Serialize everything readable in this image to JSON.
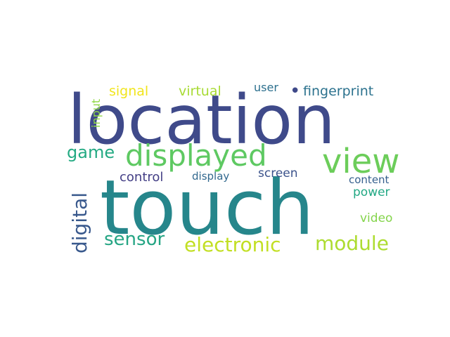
{
  "words": [
    {
      "id": "location",
      "text": "location",
      "color": "#3f4a8a"
    },
    {
      "id": "touch",
      "text": "touch",
      "color": "#26868b"
    },
    {
      "id": "displayed",
      "text": "displayed",
      "color": "#5ec962"
    },
    {
      "id": "view",
      "text": "view",
      "color": "#6ccd5a"
    },
    {
      "id": "electronic",
      "text": "electronic",
      "color": "#c2df23"
    },
    {
      "id": "module",
      "text": "module",
      "color": "#addc30"
    },
    {
      "id": "sensor",
      "text": "sensor",
      "color": "#25a584"
    },
    {
      "id": "digital",
      "text": "digital",
      "color": "#38588c"
    },
    {
      "id": "game",
      "text": "game",
      "color": "#24aa83"
    },
    {
      "id": "fingerprint",
      "text": "fingerprint",
      "color": "#2c728e"
    },
    {
      "id": "signal",
      "text": "signal",
      "color": "#f1e51d"
    },
    {
      "id": "virtual",
      "text": "virtual",
      "color": "#a8db34"
    },
    {
      "id": "user",
      "text": "user",
      "color": "#2d708e"
    },
    {
      "id": "input",
      "text": "input",
      "color": "#8fd744"
    },
    {
      "id": "control",
      "text": "control",
      "color": "#433e85"
    },
    {
      "id": "display",
      "text": "display",
      "color": "#31688e"
    },
    {
      "id": "screen",
      "text": "screen",
      "color": "#3b528b"
    },
    {
      "id": "content",
      "text": "content",
      "color": "#355f8d"
    },
    {
      "id": "power",
      "text": "power",
      "color": "#22a884"
    },
    {
      "id": "video",
      "text": "video",
      "color": "#84d44b"
    },
    {
      "id": "dot",
      "text": "•",
      "color": "#3e4989"
    }
  ]
}
